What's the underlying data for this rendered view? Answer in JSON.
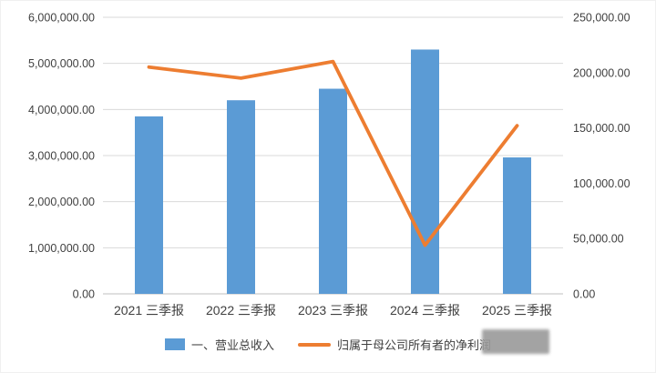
{
  "chart_data": {
    "type": "combo",
    "categories": [
      "2021 三季报",
      "2022 三季报",
      "2023 三季报",
      "2024 三季报",
      "2025 三季报"
    ],
    "series": [
      {
        "name": "一、营业总收入",
        "type": "bar",
        "axis": "left",
        "color": "#5B9BD5",
        "values": [
          3850000,
          4200000,
          4450000,
          5300000,
          2960000
        ]
      },
      {
        "name": "归属于母公司所有者的净利润",
        "type": "line",
        "axis": "right",
        "color": "#ED7D31",
        "values": [
          205000,
          195000,
          210000,
          44000,
          152000
        ]
      }
    ],
    "left_axis": {
      "min": 0,
      "max": 6000000,
      "step": 1000000,
      "decimals": 2
    },
    "right_axis": {
      "min": 0,
      "max": 250000,
      "step": 50000,
      "decimals": 2
    },
    "grid": true,
    "legend_position": "bottom",
    "gridline_color": "#D9D9D9",
    "axis_line_color": "#BFBFBF",
    "title": "",
    "xlabel": "",
    "ylabel": ""
  },
  "legend": {
    "revenue_label": "一、营业总收入",
    "net_profit_label": "归属于母公司所有者的净利润"
  }
}
